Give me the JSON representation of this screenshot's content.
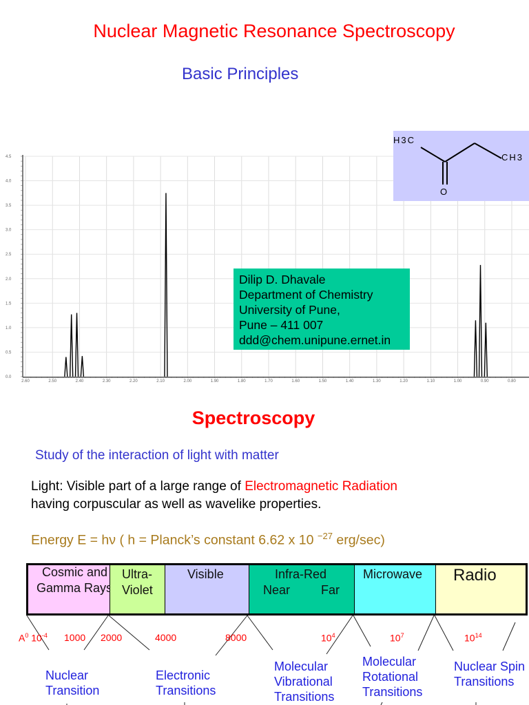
{
  "header": {
    "title": "Nuclear Magnetic Resonance Spectroscopy",
    "subtitle": "Basic Principles"
  },
  "molecule": {
    "left_group": "H3C",
    "right_group": "CH3",
    "oxygen": "O",
    "name_structure": "butan-2-one"
  },
  "contact": [
    "Dilip D. Dhavale",
    "Department of Chemistry",
    "University of Pune,",
    "Pune – 411 007",
    "ddd@chem.unipune.ernet.in"
  ],
  "chart_data": {
    "type": "line",
    "title": "",
    "xlabel": "",
    "ylabel": "",
    "xlim": [
      2.6,
      0.8
    ],
    "ylim": [
      0.0,
      4.5
    ],
    "x_ticks": [
      "2.60",
      "2.50",
      "2.40",
      "2.30",
      "2.20",
      "2.10",
      "2.00",
      "1.90",
      "1.80",
      "1.70",
      "1.60",
      "1.50",
      "1.40",
      "1.30",
      "1.20",
      "1.10",
      "1.00",
      "0.90",
      "0.80"
    ],
    "y_ticks": [
      "0.0",
      "0.5",
      "1.0",
      "1.5",
      "2.0",
      "2.5",
      "3.0",
      "3.5",
      "4.0",
      "4.5"
    ],
    "grid": true,
    "peaks": [
      {
        "x": 2.45,
        "y": 0.4
      },
      {
        "x": 2.43,
        "y": 1.27
      },
      {
        "x": 2.41,
        "y": 1.3
      },
      {
        "x": 2.39,
        "y": 0.42
      },
      {
        "x": 2.08,
        "y": 3.75
      },
      {
        "x": 0.934,
        "y": 1.15
      },
      {
        "x": 0.916,
        "y": 2.28
      },
      {
        "x": 0.896,
        "y": 1.1
      }
    ]
  },
  "section": {
    "title": "Spectroscopy",
    "study": "Study of the interaction of light with matter",
    "light_prefix": "Light: Visible part of a large range of ",
    "light_highlight": "Electromagnetic Radiation",
    "light_line2": "having corpuscular as well as wavelike properties.",
    "energy_prefix": "Energy E = hν ( h = Planck’s constant 6.62 x 10 ",
    "energy_exp": "−27",
    "energy_suffix": " erg/sec)"
  },
  "spectrum_band": [
    {
      "lines": [
        "Cosmic and",
        "Gamma Rays"
      ],
      "color": "#ffccff"
    },
    {
      "lines": [
        "Ultra-",
        "Violet"
      ],
      "color": "#ccff99"
    },
    {
      "lines": [
        "Visible"
      ],
      "color": "#ccccff"
    },
    {
      "lines": [
        "Infra-Red",
        "Near",
        "Far"
      ],
      "color": "#00cc99"
    },
    {
      "lines": [
        "Microwave"
      ],
      "color": "#66ffff"
    },
    {
      "lines": [
        "Radio"
      ],
      "color": "#ffffcc"
    }
  ],
  "wavelengths": [
    {
      "base": "A",
      "sup0": "0",
      "mid": " 10",
      "sup": "-4"
    },
    {
      "base": "1000"
    },
    {
      "base": "2000"
    },
    {
      "base": "4000"
    },
    {
      "base": "8000"
    },
    {
      "base": "10",
      "sup": "4"
    },
    {
      "base": "10",
      "sup": "7"
    },
    {
      "base": "10",
      "sup": "14"
    }
  ],
  "transitions": [
    [
      "Nuclear",
      "Transition"
    ],
    [
      "Electronic",
      "Transitions"
    ],
    [
      "Molecular",
      "Vibrational",
      "Transitions"
    ],
    [
      "Molecular",
      "Rotational",
      "Transitions"
    ],
    [
      "Nuclear Spin",
      "Transitions"
    ]
  ]
}
